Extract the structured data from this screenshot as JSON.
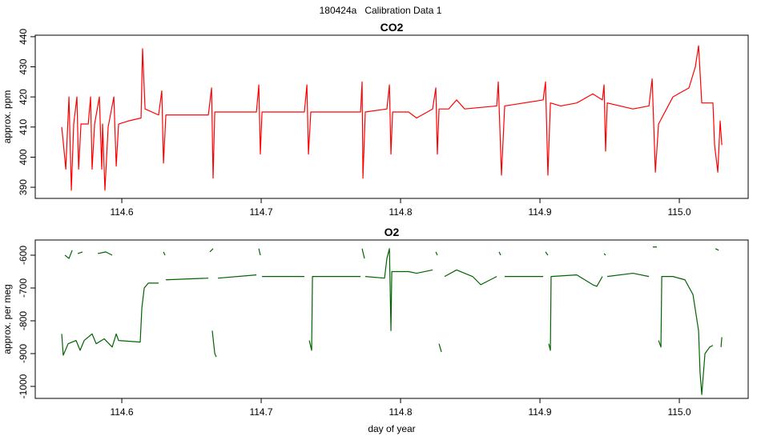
{
  "title": "180424a   Calibration Data 1",
  "chart_data": [
    {
      "type": "line",
      "title": "CO2",
      "ylabel": "approx. ppm",
      "xlim": [
        114.5379,
        115.0494
      ],
      "ylim": [
        386.3,
        440.5
      ],
      "xticks": [
        114.6,
        114.7,
        114.8,
        114.9,
        {
          "value": 115,
          "label": "115.0"
        }
      ],
      "yticks": [
        390,
        400,
        410,
        420,
        430,
        440
      ],
      "x": [
        114.5569,
        114.558,
        114.5598,
        114.5621,
        114.5638,
        114.5655,
        114.5678,
        114.569,
        114.5707,
        114.5759,
        114.5776,
        114.5787,
        114.5805,
        114.5839,
        114.5856,
        114.5862,
        114.5879,
        114.5902,
        114.5943,
        114.596,
        114.5977,
        114.6046,
        114.6138,
        114.6149,
        114.6167,
        114.6264,
        114.6287,
        114.6299,
        114.6316,
        114.6621,
        114.6644,
        114.6655,
        114.6667,
        114.6966,
        114.6983,
        114.6994,
        114.7006,
        114.731,
        114.7328,
        114.7339,
        114.7356,
        114.7713,
        114.7724,
        114.773,
        114.7747,
        114.7902,
        114.792,
        114.7931,
        114.7943,
        114.8057,
        114.8115,
        114.823,
        114.8253,
        114.8264,
        114.8276,
        114.8345,
        114.8402,
        114.846,
        114.869,
        114.8701,
        114.8724,
        114.8747,
        114.9023,
        114.904,
        114.9057,
        114.9075,
        114.9149,
        114.9264,
        114.9379,
        114.9448,
        114.946,
        114.9471,
        114.9483,
        114.9667,
        114.9782,
        114.9805,
        114.9828,
        114.9851,
        114.9954,
        115.0069,
        115.0115,
        115.0138,
        115.0161,
        115.0241,
        115.0253,
        115.0276,
        115.0293,
        115.0305
      ],
      "series": [
        {
          "color": "#ff0000",
          "values": [
            410,
            405,
            396,
            420,
            389,
            411,
            420,
            396,
            411,
            411,
            420,
            396,
            411,
            420,
            396,
            411,
            389,
            410,
            420,
            397,
            411,
            412,
            413,
            436,
            416,
            414,
            422,
            398,
            414,
            414,
            423,
            393,
            415,
            415,
            424,
            401,
            415,
            415,
            424,
            401,
            415,
            415,
            425,
            393,
            415,
            416,
            424,
            401,
            415,
            415,
            413,
            416,
            423,
            401,
            416,
            416,
            419,
            416,
            417,
            425,
            394,
            417,
            419,
            425,
            394,
            418,
            417,
            418,
            421,
            419,
            424,
            402,
            418,
            416,
            417,
            426,
            395,
            411,
            420,
            423,
            430,
            437,
            418,
            418,
            404,
            395,
            412,
            404
          ]
        }
      ]
    },
    {
      "type": "line",
      "title": "O2",
      "ylabel": "approx. per meg",
      "xlabel": "day of year",
      "xlim": [
        114.5379,
        115.0494
      ],
      "ylim": [
        -1036.6,
        -553.7
      ],
      "xticks": [
        114.6,
        114.7,
        114.8,
        114.9,
        {
          "value": 115,
          "label": "115.0"
        }
      ],
      "yticks": [
        -1000,
        -900,
        -800,
        -700,
        -600
      ],
      "x": [
        114.5569,
        114.558,
        114.5615,
        114.5672,
        114.5701,
        114.573,
        114.5787,
        114.5816,
        114.5874,
        114.5931,
        114.596,
        114.5977,
        114.6132,
        114.6144,
        114.6161,
        114.619,
        114.6264,
        114.5592,
        114.5592,
        114.5621,
        114.5644,
        114.5684,
        114.5684,
        114.5718,
        114.5828,
        114.5828,
        114.5885,
        114.5931,
        114.6299,
        114.6299,
        114.631,
        114.6316,
        114.6316,
        114.6621,
        114.6632,
        114.6632,
        114.6655,
        114.6649,
        114.6649,
        114.6667,
        114.6678,
        114.669,
        114.669,
        114.6966,
        114.6983,
        114.6983,
        114.6994,
        114.7006,
        114.7006,
        114.731,
        114.7345,
        114.7345,
        114.7362,
        114.7368,
        114.7713,
        114.7724,
        114.7724,
        114.7741,
        114.7747,
        114.7747,
        114.7885,
        114.7902,
        114.792,
        114.7931,
        114.7937,
        114.8057,
        114.8115,
        114.823,
        114.8253,
        114.8253,
        114.8264,
        114.8276,
        114.8276,
        114.8293,
        114.8316,
        114.8316,
        114.8402,
        114.8517,
        114.8575,
        114.869,
        114.8707,
        114.8707,
        114.8718,
        114.8747,
        114.8747,
        114.9023,
        114.904,
        114.904,
        114.9057,
        114.9063,
        114.9063,
        114.9075,
        114.908,
        114.9264,
        114.9379,
        114.9408,
        114.9448,
        114.946,
        114.946,
        114.9471,
        114.9483,
        114.9483,
        114.9667,
        114.9782,
        114.981,
        114.981,
        114.9839,
        114.9851,
        114.9851,
        114.9868,
        114.9874,
        114.9954,
        115.004,
        115.0098,
        115.0138,
        115.0149,
        115.0161,
        115.0184,
        115.0218,
        115.0241,
        115.0259,
        115.0259,
        115.0282,
        115.0299,
        115.0299,
        115.0305
      ],
      "series": [
        {
          "color": "#006400",
          "values": [
            -840,
            -905,
            -870,
            -860,
            -890,
            -860,
            -840,
            -870,
            -855,
            -880,
            -840,
            -860,
            -865,
            -760,
            -700,
            -685,
            -685,
            null,
            -600,
            -610,
            -585,
            null,
            -595,
            -590,
            null,
            -595,
            -590,
            -600,
            null,
            -590,
            -600,
            null,
            -675,
            -670,
            null,
            -590,
            -580,
            null,
            -830,
            -900,
            -910,
            null,
            -670,
            -660,
            null,
            -580,
            -600,
            null,
            -665,
            -665,
            null,
            -860,
            -890,
            -665,
            -665,
            null,
            -580,
            -610,
            null,
            -665,
            -670,
            -610,
            -580,
            -830,
            -650,
            -650,
            -655,
            -645,
            null,
            -590,
            -600,
            null,
            -870,
            -895,
            null,
            -665,
            -645,
            -665,
            -690,
            -665,
            null,
            -590,
            -600,
            null,
            -665,
            -665,
            null,
            -590,
            -600,
            null,
            -870,
            -890,
            -665,
            -660,
            -690,
            -695,
            -665,
            null,
            -595,
            -600,
            null,
            -665,
            -655,
            -665,
            null,
            -575,
            -575,
            null,
            -860,
            -880,
            -665,
            -665,
            -675,
            -720,
            -830,
            -960,
            -1025,
            -900,
            -880,
            -875,
            null,
            -580,
            -585,
            null,
            -880,
            -850
          ]
        }
      ]
    }
  ]
}
